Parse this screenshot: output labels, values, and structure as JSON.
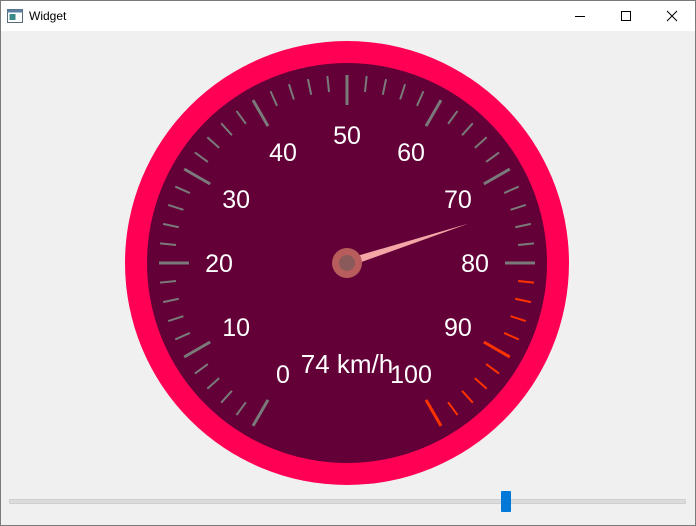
{
  "window": {
    "title": "Widget",
    "accent": "#0078d7"
  },
  "gauge": {
    "min": 0,
    "max": 100,
    "value": 74,
    "unit": "km/h",
    "readout": "74 km/h",
    "major_labels": [
      "0",
      "10",
      "20",
      "30",
      "40",
      "50",
      "60",
      "70",
      "80",
      "90",
      "100"
    ],
    "danger_from": 80,
    "colors": {
      "outer_ring": "#ff0055",
      "face": "#620037",
      "tick": "#7a7a7a",
      "danger_tick": "#ff3300",
      "label": "#ffffff",
      "needle": "#f4a5a5",
      "hub": "#b85c5c"
    }
  },
  "slider": {
    "min": 0,
    "max": 100,
    "value": 74
  }
}
